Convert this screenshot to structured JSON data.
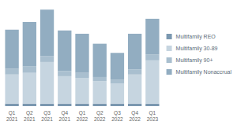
{
  "chart_data": {
    "type": "bar",
    "categories": [
      "Q1\n2021",
      "Q2\n2021",
      "Q3\n2021",
      "Q4\n2021",
      "Q1\n2022",
      "Q2\n2022",
      "Q3\n2022",
      "Q4\n2022",
      "Q1\n2023"
    ],
    "series": [
      {
        "name": "Multifamily REO",
        "color": "#7b98b0",
        "values": [
          3,
          3,
          3,
          3,
          3,
          3,
          3,
          3,
          3
        ]
      },
      {
        "name": "Multifamily 30-89",
        "color": "#c6d5e0",
        "values": [
          35,
          37,
          50,
          33,
          31,
          27,
          24,
          35,
          52
        ]
      },
      {
        "name": "Multifamily 90+",
        "color": "#a9bfcf",
        "values": [
          7,
          8,
          7,
          6,
          6,
          5,
          5,
          6,
          7
        ]
      },
      {
        "name": "Multifamily Nonaccrual",
        "color": "#92adc1",
        "values": [
          47,
          53,
          56,
          49,
          47,
          40,
          32,
          43,
          43
        ]
      }
    ],
    "ylim": [
      0,
      120
    ],
    "yticks": [
      0,
      120
    ],
    "stacked": true,
    "grid": false,
    "legend": "right",
    "tick_labels": "x"
  }
}
